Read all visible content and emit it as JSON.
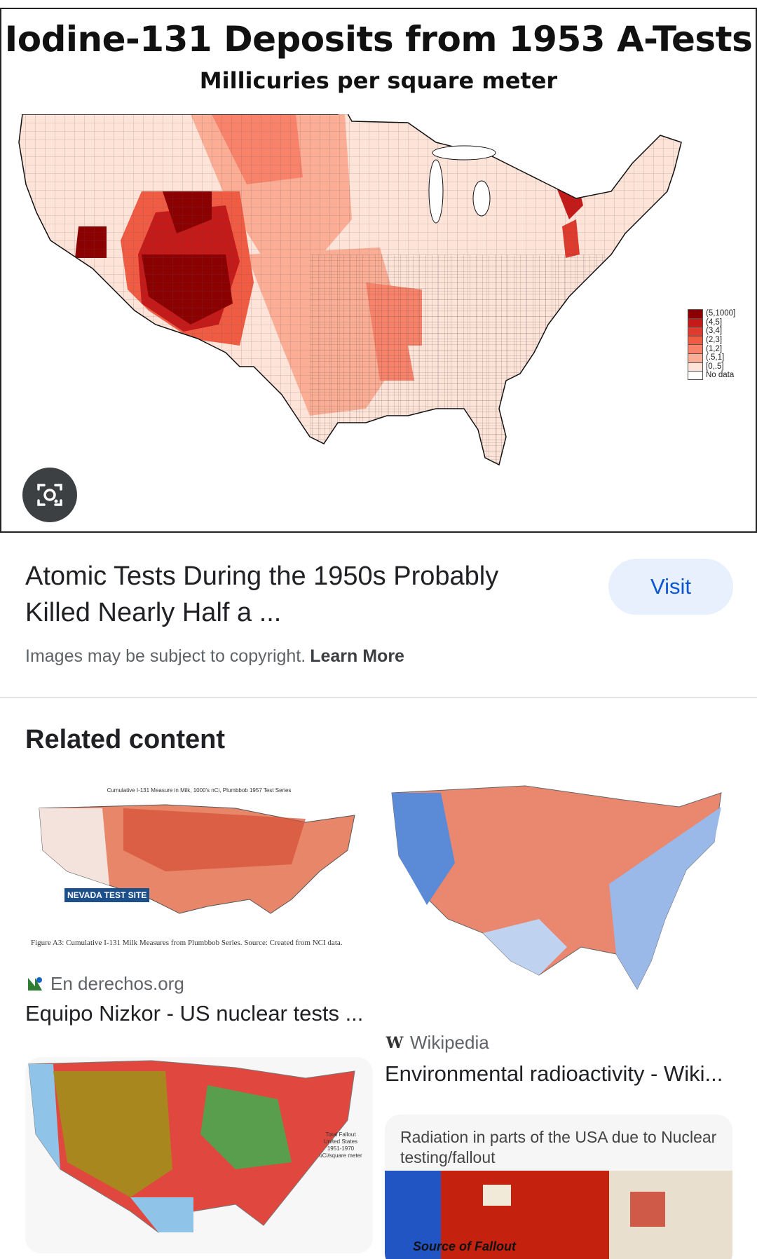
{
  "hero": {
    "title": "Iodine-131 Deposits from 1953 A-Tests",
    "subtitle": "Millicuries per square meter",
    "legend": [
      {
        "label": "(5,1000]",
        "color": "#8b0000"
      },
      {
        "label": "(4,5]",
        "color": "#c41a1a"
      },
      {
        "label": "(3,4]",
        "color": "#de3a2e"
      },
      {
        "label": "(2,3]",
        "color": "#ef5b43"
      },
      {
        "label": "(1,2]",
        "color": "#f8836a"
      },
      {
        "label": "(.5,1]",
        "color": "#fbae95"
      },
      {
        "label": "[0,.5]",
        "color": "#fde3d8"
      },
      {
        "label": "No data",
        "color": "#ffffff"
      }
    ],
    "lens_icon": "lens-camera-icon"
  },
  "result": {
    "title": "Atomic Tests During the 1950s Probably Killed Nearly Half a ...",
    "visit_label": "Visit",
    "copyright_text": "Images may be subject to copyright.",
    "learn_more": "Learn More"
  },
  "related": {
    "heading": "Related content",
    "cards": [
      {
        "source": "En derechos.org",
        "title": "Equipo Nizkor - US nuclear tests ...",
        "thumb_header": "Cumulative I-131 Measure in Milk, 1000's nCi, Plumbbob 1957 Test Series",
        "thumb_label": "NEVADA TEST SITE",
        "thumb_caption": "Figure A3: Cumulative I-131 Milk Measures from Plumbbob Series. Source: Created from NCI data."
      },
      {
        "source": "Wikipedia",
        "title": "Environmental radioactivity - Wiki..."
      },
      {
        "thumb_legend_title": "Total Fallout United States 1951-1970 uCi/square meter"
      },
      {
        "thumb_caption": "Radiation in parts of the USA due to Nuclear testing/fallout",
        "thumb_label": "Source of Fallout"
      }
    ]
  }
}
